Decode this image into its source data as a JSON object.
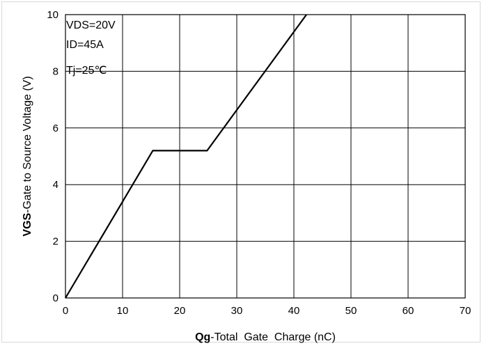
{
  "chart_data": {
    "type": "line",
    "title": "",
    "xlabel_bold": "Qg",
    "xlabel_rest": "-Total  Gate  Charge (nC)",
    "ylabel_bold": "VGS",
    "ylabel_rest": "-Gate to Source Voltage (V)",
    "xlim": [
      0,
      70
    ],
    "ylim": [
      0,
      10
    ],
    "x_ticks": [
      0,
      10,
      20,
      30,
      40,
      50,
      60,
      70
    ],
    "y_ticks": [
      0,
      2,
      4,
      6,
      8,
      10
    ],
    "grid": true,
    "legend": "none",
    "annotations": [
      "VDS=20V",
      "ID=45A",
      "Tj=25℃"
    ],
    "series": [
      {
        "x": [
          0,
          15.3,
          24.8,
          42.2
        ],
        "y": [
          0,
          5.2,
          5.2,
          10.0
        ]
      }
    ],
    "colors": {
      "line": "#000000",
      "grid": "#000000",
      "frame": "#d9d9d9"
    }
  }
}
